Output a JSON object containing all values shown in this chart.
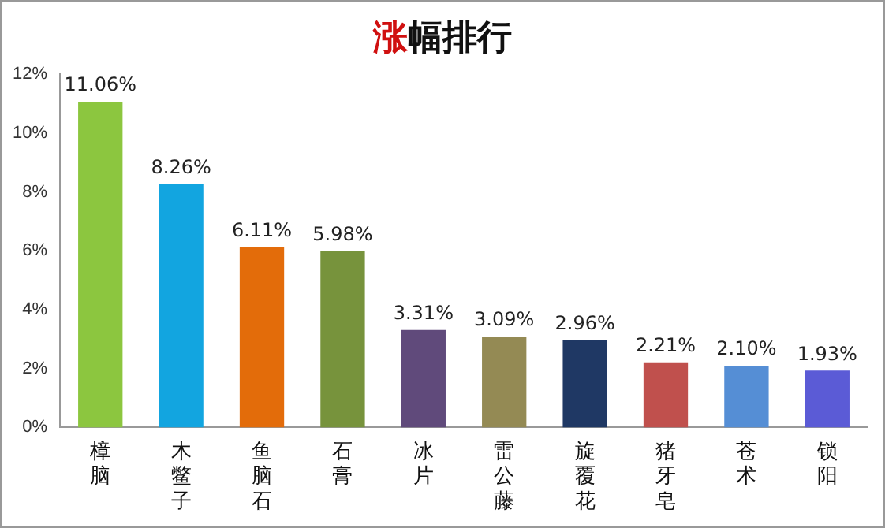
{
  "chart_data": {
    "type": "bar",
    "title": "涨幅排行",
    "categories": [
      "樟脑",
      "木鳖子",
      "鱼脑石",
      "石膏",
      "冰片",
      "雷公藤",
      "旋覆花",
      "猪牙皂",
      "苍术",
      "锁阳"
    ],
    "values": [
      11.06,
      8.26,
      6.11,
      5.98,
      3.31,
      3.09,
      2.96,
      2.21,
      2.1,
      1.93
    ],
    "value_labels": [
      "11.06%",
      "8.26%",
      "6.11%",
      "5.98%",
      "3.31%",
      "3.09%",
      "2.96%",
      "2.21%",
      "2.10%",
      "1.93%"
    ],
    "colors": [
      "#8cc63f",
      "#12a5e0",
      "#e36c0a",
      "#77933c",
      "#604a7b",
      "#948a54",
      "#1f3864",
      "#c0504d",
      "#558ed5",
      "#5b5bd6"
    ],
    "ylim": [
      0,
      12
    ],
    "yticks": [
      {
        "value": 0,
        "label": "0%"
      },
      {
        "value": 2,
        "label": "2%"
      },
      {
        "value": 4,
        "label": "4%"
      },
      {
        "value": 6,
        "label": "6%"
      },
      {
        "value": 8,
        "label": "8%"
      },
      {
        "value": 10,
        "label": "10%"
      },
      {
        "value": 12,
        "label": "12%"
      }
    ],
    "grid": false,
    "legend": false
  }
}
